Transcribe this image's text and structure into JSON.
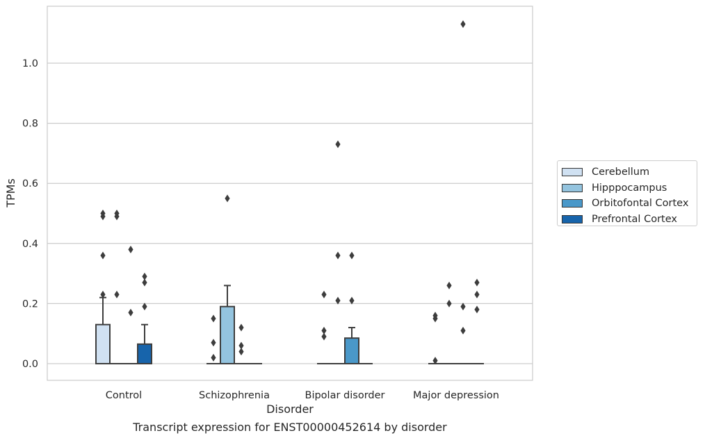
{
  "chart_data": {
    "type": "box",
    "caption": "Transcript expression for ENST00000452614 by disorder",
    "xlabel": "Disorder",
    "ylabel": "TPMs",
    "ylim": [
      -0.055,
      1.19
    ],
    "yticks": [
      0.0,
      0.2,
      0.4,
      0.6,
      0.8,
      1.0
    ],
    "ytick_labels": [
      "0.0",
      "0.2",
      "0.4",
      "0.6",
      "0.8",
      "1.0"
    ],
    "grid": "horizontal",
    "legend_position": "right",
    "categories": [
      "Control",
      "Schizophrenia",
      "Bipolar disorder",
      "Major depression"
    ],
    "series": [
      {
        "name": "Cerebellum",
        "color": "#d0e1f2",
        "boxes": [
          {
            "q1": 0,
            "median": 0,
            "q3": 0.13,
            "whisker_low": 0,
            "whisker_high": 0.22,
            "outliers": [
              0.36,
              0.5,
              0.49,
              0.23
            ]
          },
          {
            "q1": 0,
            "median": 0,
            "q3": 0,
            "whisker_low": 0,
            "whisker_high": 0,
            "outliers": [
              0.15,
              0.07,
              0.02
            ]
          },
          {
            "q1": 0,
            "median": 0,
            "q3": 0,
            "whisker_low": 0,
            "whisker_high": 0,
            "outliers": [
              0.23,
              0.11,
              0.09
            ]
          },
          {
            "q1": 0,
            "median": 0,
            "q3": 0,
            "whisker_low": 0,
            "whisker_high": 0,
            "outliers": [
              0.16,
              0.15,
              0.01
            ]
          }
        ]
      },
      {
        "name": "Hipppocampus",
        "color": "#94c4df",
        "boxes": [
          {
            "q1": 0,
            "median": 0,
            "q3": 0,
            "whisker_low": 0,
            "whisker_high": 0,
            "outliers": [
              0.5,
              0.49,
              0.23
            ]
          },
          {
            "q1": 0,
            "median": 0,
            "q3": 0.19,
            "whisker_low": 0,
            "whisker_high": 0.26,
            "outliers": [
              0.55
            ]
          },
          {
            "q1": 0,
            "median": 0,
            "q3": 0,
            "whisker_low": 0,
            "whisker_high": 0,
            "outliers": [
              0.73,
              0.36,
              0.21
            ]
          },
          {
            "q1": 0,
            "median": 0,
            "q3": 0,
            "whisker_low": 0,
            "whisker_high": 0,
            "outliers": [
              0.26,
              0.2
            ]
          }
        ]
      },
      {
        "name": "Orbitofontal Cortex",
        "color": "#4a98c9",
        "boxes": [
          {
            "q1": 0,
            "median": 0,
            "q3": 0,
            "whisker_low": 0,
            "whisker_high": 0,
            "outliers": [
              0.38,
              0.17
            ]
          },
          {
            "q1": 0,
            "median": 0,
            "q3": 0,
            "whisker_low": 0,
            "whisker_high": 0,
            "outliers": [
              0.12,
              0.06,
              0.04
            ]
          },
          {
            "q1": 0,
            "median": 0,
            "q3": 0.085,
            "whisker_low": 0,
            "whisker_high": 0.12,
            "outliers": [
              0.36,
              0.21
            ]
          },
          {
            "q1": 0,
            "median": 0,
            "q3": 0,
            "whisker_low": 0,
            "whisker_high": 0,
            "outliers": [
              1.13,
              0.19,
              0.11
            ]
          }
        ]
      },
      {
        "name": "Prefrontal Cortex",
        "color": "#1764ab",
        "boxes": [
          {
            "q1": 0,
            "median": 0,
            "q3": 0.065,
            "whisker_low": 0,
            "whisker_high": 0.13,
            "outliers": [
              0.29,
              0.27,
              0.19
            ]
          },
          {
            "q1": 0,
            "median": 0,
            "q3": 0,
            "whisker_low": 0,
            "whisker_high": 0,
            "outliers": []
          },
          {
            "q1": 0,
            "median": 0,
            "q3": 0,
            "whisker_low": 0,
            "whisker_high": 0,
            "outliers": []
          },
          {
            "q1": 0,
            "median": 0,
            "q3": 0,
            "whisker_low": 0,
            "whisker_high": 0,
            "outliers": [
              0.27,
              0.23,
              0.18
            ]
          }
        ]
      }
    ]
  }
}
